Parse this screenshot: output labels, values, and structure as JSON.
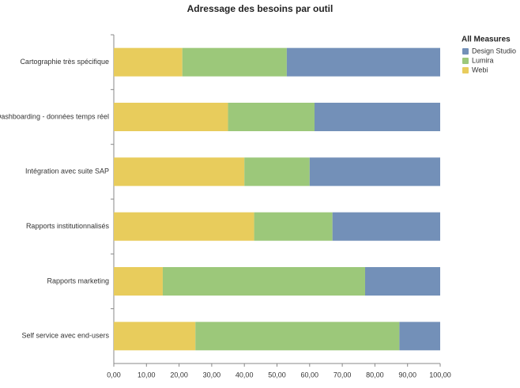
{
  "chart_data": {
    "type": "stacked_barh",
    "title": "Adressage des besoins par outil",
    "categories": [
      "Cartographie très spécifique",
      "Dashboarding - données temps réel",
      "Intégration avec suite SAP",
      "Rapports institutionnalisés",
      "Rapports marketing",
      "Self service avec end-users"
    ],
    "series": [
      {
        "name": "Webi",
        "color": "#e8cc5c",
        "values": [
          21,
          35,
          40,
          43,
          15,
          25
        ]
      },
      {
        "name": "Lumira",
        "color": "#9cc87a",
        "values": [
          32,
          26.5,
          20,
          24,
          62,
          62.5
        ]
      },
      {
        "name": "Design Studio",
        "color": "#7390b8",
        "values": [
          47,
          38.5,
          40,
          33,
          23,
          12.5
        ]
      }
    ],
    "legend_title": "All Measures",
    "legend_order": [
      2,
      1,
      0
    ],
    "xlim": [
      0,
      100
    ],
    "xticks": [
      {
        "value": 0,
        "label": "0,00"
      },
      {
        "value": 10,
        "label": "10,00"
      },
      {
        "value": 20,
        "label": "20,00"
      },
      {
        "value": 30,
        "label": "30,00"
      },
      {
        "value": 40,
        "label": "40,00"
      },
      {
        "value": 50,
        "label": "50,00"
      },
      {
        "value": 60,
        "label": "60,00"
      },
      {
        "value": 70,
        "label": "70,00"
      },
      {
        "value": 80,
        "label": "80,00"
      },
      {
        "value": 90,
        "label": "90,00"
      },
      {
        "value": 100,
        "label": "100,00"
      }
    ],
    "grid": false
  }
}
